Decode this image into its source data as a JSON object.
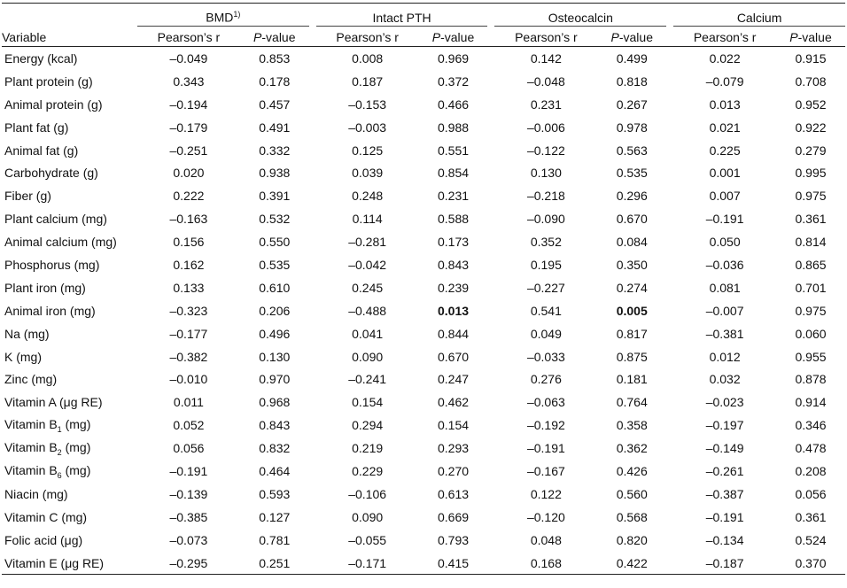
{
  "headers": {
    "variable": "Variable",
    "groups": [
      {
        "label": "BMD",
        "sup": "1)"
      },
      {
        "label": "Intact PTH",
        "sup": ""
      },
      {
        "label": "Osteocalcin",
        "sup": ""
      },
      {
        "label": "Calcium",
        "sup": ""
      }
    ],
    "pearson": "Pearson’s r",
    "p_italic": "P",
    "p_rest": "-value"
  },
  "rows": [
    {
      "name": "Energy (kcal)",
      "sub": "",
      "suffix": "",
      "values": [
        "–0.049",
        "0.853",
        "0.008",
        "0.969",
        "0.142",
        "0.499",
        "0.022",
        "0.915"
      ]
    },
    {
      "name": "Plant protein (g)",
      "sub": "",
      "suffix": "",
      "values": [
        "0.343",
        "0.178",
        "0.187",
        "0.372",
        "–0.048",
        "0.818",
        "–0.079",
        "0.708"
      ]
    },
    {
      "name": "Animal protein (g)",
      "sub": "",
      "suffix": "",
      "values": [
        "–0.194",
        "0.457",
        "–0.153",
        "0.466",
        "0.231",
        "0.267",
        "0.013",
        "0.952"
      ]
    },
    {
      "name": "Plant fat (g)",
      "sub": "",
      "suffix": "",
      "values": [
        "–0.179",
        "0.491",
        "–0.003",
        "0.988",
        "–0.006",
        "0.978",
        "0.021",
        "0.922"
      ]
    },
    {
      "name": "Animal fat (g)",
      "sub": "",
      "suffix": "",
      "values": [
        "–0.251",
        "0.332",
        "0.125",
        "0.551",
        "–0.122",
        "0.563",
        "0.225",
        "0.279"
      ]
    },
    {
      "name": "Carbohydrate (g)",
      "sub": "",
      "suffix": "",
      "values": [
        "0.020",
        "0.938",
        "0.039",
        "0.854",
        "0.130",
        "0.535",
        "0.001",
        "0.995"
      ]
    },
    {
      "name": "Fiber (g)",
      "sub": "",
      "suffix": "",
      "values": [
        "0.222",
        "0.391",
        "0.248",
        "0.231",
        "–0.218",
        "0.296",
        "0.007",
        "0.975"
      ]
    },
    {
      "name": "Plant calcium (mg)",
      "sub": "",
      "suffix": "",
      "values": [
        "–0.163",
        "0.532",
        "0.114",
        "0.588",
        "–0.090",
        "0.670",
        "–0.191",
        "0.361"
      ]
    },
    {
      "name": "Animal calcium (mg)",
      "sub": "",
      "suffix": "",
      "values": [
        "0.156",
        "0.550",
        "–0.281",
        "0.173",
        "0.352",
        "0.084",
        "0.050",
        "0.814"
      ]
    },
    {
      "name": "Phosphorus (mg)",
      "sub": "",
      "suffix": "",
      "values": [
        "0.162",
        "0.535",
        "–0.042",
        "0.843",
        "0.195",
        "0.350",
        "–0.036",
        "0.865"
      ]
    },
    {
      "name": "Plant iron (mg)",
      "sub": "",
      "suffix": "",
      "values": [
        "0.133",
        "0.610",
        "0.245",
        "0.239",
        "–0.227",
        "0.274",
        "0.081",
        "0.701"
      ]
    },
    {
      "name": "Animal iron (mg)",
      "sub": "",
      "suffix": "",
      "values": [
        "–0.323",
        "0.206",
        "–0.488",
        "0.013",
        "0.541",
        "0.005",
        "–0.007",
        "0.975"
      ],
      "bold": [
        3,
        5
      ]
    },
    {
      "name": "Na (mg)",
      "sub": "",
      "suffix": "",
      "values": [
        "–0.177",
        "0.496",
        "0.041",
        "0.844",
        "0.049",
        "0.817",
        "–0.381",
        "0.060"
      ]
    },
    {
      "name": "K (mg)",
      "sub": "",
      "suffix": "",
      "values": [
        "–0.382",
        "0.130",
        "0.090",
        "0.670",
        "–0.033",
        "0.875",
        "0.012",
        "0.955"
      ]
    },
    {
      "name": "Zinc (mg)",
      "sub": "",
      "suffix": "",
      "values": [
        "–0.010",
        "0.970",
        "–0.241",
        "0.247",
        "0.276",
        "0.181",
        "0.032",
        "0.878"
      ]
    },
    {
      "name": "Vitamin A (μg RE)",
      "sub": "",
      "suffix": "",
      "values": [
        "0.011",
        "0.968",
        "0.154",
        "0.462",
        "–0.063",
        "0.764",
        "–0.023",
        "0.914"
      ]
    },
    {
      "name": "Vitamin B",
      "sub": "1",
      "suffix": " (mg)",
      "values": [
        "0.052",
        "0.843",
        "0.294",
        "0.154",
        "–0.192",
        "0.358",
        "–0.197",
        "0.346"
      ]
    },
    {
      "name": "Vitamin B",
      "sub": "2",
      "suffix": " (mg)",
      "values": [
        "0.056",
        "0.832",
        "0.219",
        "0.293",
        "–0.191",
        "0.362",
        "–0.149",
        "0.478"
      ]
    },
    {
      "name": "Vitamin B",
      "sub": "6",
      "suffix": " (mg)",
      "values": [
        "–0.191",
        "0.464",
        "0.229",
        "0.270",
        "–0.167",
        "0.426",
        "–0.261",
        "0.208"
      ]
    },
    {
      "name": "Niacin (mg)",
      "sub": "",
      "suffix": "",
      "values": [
        "–0.139",
        "0.593",
        "–0.106",
        "0.613",
        "0.122",
        "0.560",
        "–0.387",
        "0.056"
      ]
    },
    {
      "name": "Vitamin C (mg)",
      "sub": "",
      "suffix": "",
      "values": [
        "–0.385",
        "0.127",
        "0.090",
        "0.669",
        "–0.120",
        "0.568",
        "–0.191",
        "0.361"
      ]
    },
    {
      "name": "Folic acid (μg)",
      "sub": "",
      "suffix": "",
      "values": [
        "–0.073",
        "0.781",
        "–0.055",
        "0.793",
        "0.048",
        "0.820",
        "–0.134",
        "0.524"
      ]
    },
    {
      "name": "Vitamin E (μg RE)",
      "sub": "",
      "suffix": "",
      "values": [
        "–0.295",
        "0.251",
        "–0.171",
        "0.415",
        "0.168",
        "0.422",
        "–0.187",
        "0.370"
      ]
    }
  ]
}
